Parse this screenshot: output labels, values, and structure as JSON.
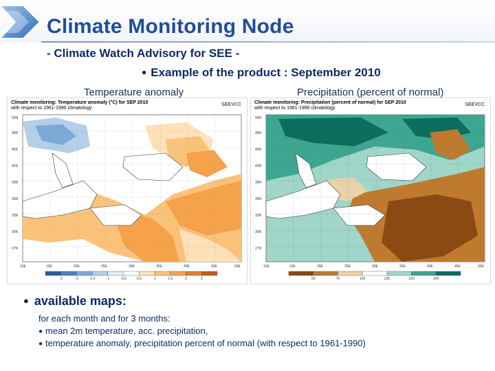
{
  "header": {
    "title": "Climate Monitoring Node",
    "subtitle": "- Climate Watch Advisory for SEE -",
    "example_bullet": "●",
    "example_text": "Example of the product : September 2010"
  },
  "maps": {
    "temperature": {
      "label": "Temperature anomaly",
      "caption_line1": "Climate monitoring: Temperature anomaly (°C) for SEP 2010",
      "caption_line2": "with respect to 1961-1990 climatology",
      "logo": "SEEVCC",
      "lat_labels": [
        "50N",
        "48N",
        "45N",
        "42N",
        "39N",
        "36N",
        "33N",
        "30N",
        "27N"
      ],
      "lon_labels": [
        "10E",
        "15E",
        "20E",
        "25E",
        "30E",
        "35E",
        "40E",
        "45E",
        "50E"
      ],
      "legend_values": [
        "-3",
        "-2",
        "-1.5",
        "-1",
        "-0.5",
        "0.5",
        "1",
        "1.5",
        "2",
        "3"
      ],
      "legend_colors": [
        "#2b5c9e",
        "#4a7fbf",
        "#7da9d8",
        "#b3cfe9",
        "#e0ecf7",
        "#ffffff",
        "#fde1b8",
        "#fbc27a",
        "#f5a24b",
        "#e97d2e",
        "#c9581f"
      ]
    },
    "precipitation": {
      "label": "Precipitation (percent of normal)",
      "caption_line1": "Climate monitoring: Precipitation (percent of normal) for SEP 2010",
      "caption_line2": "with respect to 1961-1990 climatology",
      "logo": "SEEVCC",
      "lat_labels": [
        "50N",
        "48N",
        "45N",
        "42N",
        "39N",
        "36N",
        "33N",
        "30N",
        "27N"
      ],
      "lon_labels": [
        "10E",
        "15E",
        "20E",
        "25E",
        "30E",
        "35E",
        "40E",
        "45E",
        "50E"
      ],
      "legend_values": [
        "50",
        "75",
        "100",
        "125",
        "150",
        "200"
      ],
      "legend_colors": [
        "#8a4a12",
        "#c07a2e",
        "#ead3a8",
        "#ffffff",
        "#9fd6c9",
        "#3ea690",
        "#0b6e5e"
      ]
    }
  },
  "available": {
    "bullet": "●",
    "heading": "available maps:",
    "line1": "for each month and for 3 months:",
    "line2_bullet": "●",
    "line2": "mean 2m temperature, acc. precipitation,",
    "line3_bullet": "●",
    "line3": "temperature anomaly, precipitation percent of normal (with respect to 1961-1990)"
  }
}
